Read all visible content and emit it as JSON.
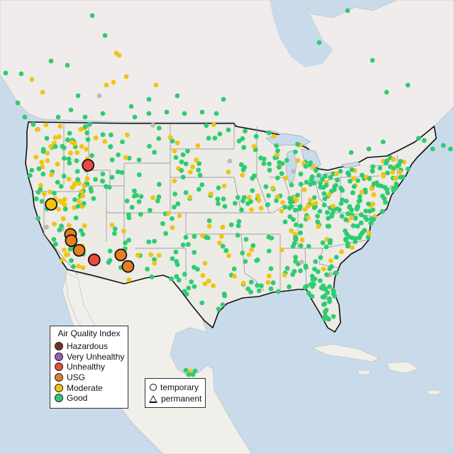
{
  "map": {
    "colors": {
      "water": "#c9dbea",
      "land": "#ecebe6",
      "mexico_land": "#f0efea",
      "canada_land": "#f1ecec",
      "state_border": "#8a8a8a",
      "national_border": "#111111",
      "good": "#2ecc71",
      "moderate": "#f1c40f",
      "usg": "#e67e22",
      "unhealthy": "#e74c3c",
      "very_unhealthy": "#9b59b6",
      "hazardous": "#7b2d26",
      "no_data": "#bbbbbb"
    },
    "large_markers": [
      {
        "lon": -116.5,
        "lat": 43.6,
        "category": "unhealthy"
      },
      {
        "lon": -121.6,
        "lat": 39.3,
        "category": "moderate"
      },
      {
        "lon": -118.9,
        "lat": 35.9,
        "category": "usg"
      },
      {
        "lon": -118.8,
        "lat": 35.2,
        "category": "usg"
      },
      {
        "lon": -117.7,
        "lat": 34.1,
        "category": "usg"
      },
      {
        "lon": -115.6,
        "lat": 33.0,
        "category": "unhealthy"
      },
      {
        "lon": -111.9,
        "lat": 33.5,
        "category": "usg"
      },
      {
        "lon": -110.9,
        "lat": 32.2,
        "category": "usg"
      }
    ]
  },
  "legend_aqi": {
    "title": "Air Quality Index",
    "items": [
      {
        "label": "Hazardous",
        "color": "#7b2d26"
      },
      {
        "label": "Very Unhealthy",
        "color": "#9b59b6"
      },
      {
        "label": "Unhealthy",
        "color": "#e74c3c"
      },
      {
        "label": "USG",
        "color": "#e67e22"
      },
      {
        "label": "Moderate",
        "color": "#f1c40f"
      },
      {
        "label": "Good",
        "color": "#2ecc71"
      }
    ]
  },
  "legend_monitor": {
    "items": [
      {
        "label": "temporary",
        "icon": "circle-icon"
      },
      {
        "label": "permanent",
        "icon": "triangle-icon"
      }
    ]
  }
}
